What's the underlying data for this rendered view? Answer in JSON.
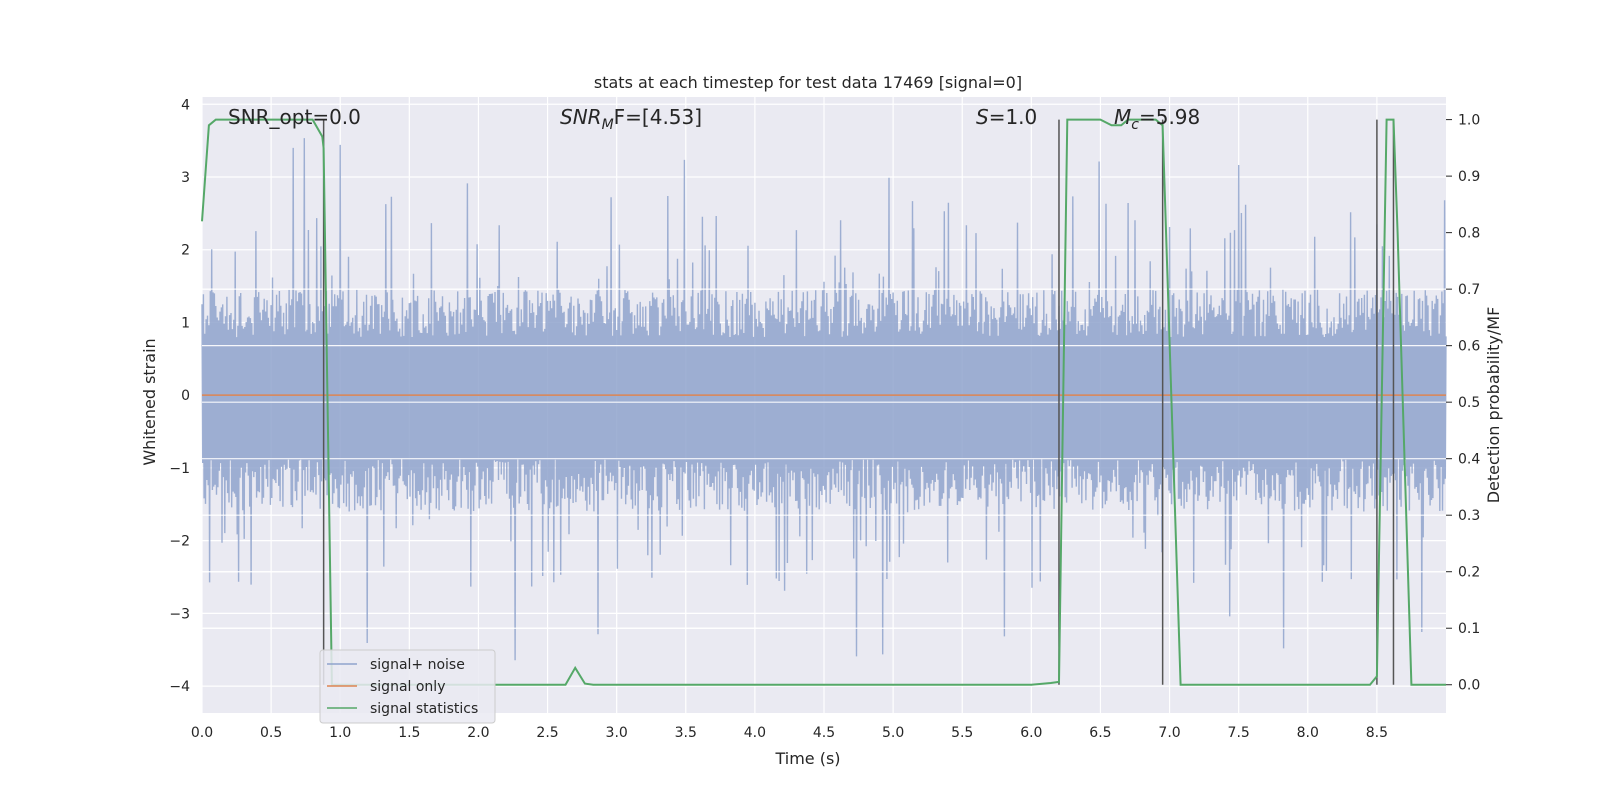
{
  "colors": {
    "background": "#eaeaf2",
    "grid": "#ffffff",
    "noise": "#8fa3cc",
    "signal": "#dd8452",
    "stats": "#55a868",
    "vline": "#555555"
  },
  "chart_data": {
    "type": "line",
    "title": "stats at each timestep for test data 17469 [signal=0]",
    "xlabel": "Time (s)",
    "ylabel": "Whitened strain",
    "y2label": "Detection probability/MF",
    "xlim": [
      0,
      9.0
    ],
    "ylim": [
      -4.37,
      4.1
    ],
    "y2lim": [
      -0.05,
      1.04
    ],
    "grid": true,
    "xticks": [
      0.0,
      0.5,
      1.0,
      1.5,
      2.0,
      2.5,
      3.0,
      3.5,
      4.0,
      4.5,
      5.0,
      5.5,
      6.0,
      6.5,
      7.0,
      7.5,
      8.0,
      8.5
    ],
    "xtick_labels": [
      "0.0",
      "0.5",
      "1.0",
      "1.5",
      "2.0",
      "2.5",
      "3.0",
      "3.5",
      "4.0",
      "4.5",
      "5.0",
      "5.5",
      "6.0",
      "6.5",
      "7.0",
      "7.5",
      "8.0",
      "8.5"
    ],
    "yticks": [
      4,
      3,
      2,
      1,
      0,
      -1,
      -2,
      -3,
      -4
    ],
    "ytick_labels": [
      "4",
      "3",
      "2",
      "1",
      "0",
      "−1",
      "−2",
      "−3",
      "−4"
    ],
    "y2ticks": [
      1.0,
      0.9,
      0.8,
      0.7,
      0.6,
      0.5,
      0.4,
      0.3,
      0.2,
      0.1,
      0.0
    ],
    "y2tick_labels": [
      "1.0",
      "0.9",
      "0.8",
      "0.7",
      "0.6",
      "0.5",
      "0.4",
      "0.3",
      "0.2",
      "0.1",
      "0.0"
    ],
    "annotations": {
      "snr_opt": "SNR_opt=0.0",
      "snr_mf_main": "SNR",
      "snr_mf_sub": "M",
      "snr_mf_rest": "F=[4.53]",
      "s_main": "S",
      "s_rest": "=1.0",
      "mc_main": "M",
      "mc_sub": "c",
      "mc_rest": "=5.98"
    },
    "legend": {
      "placement": "lower-left",
      "entries": [
        "signal+ noise",
        "signal only",
        "signal statistics"
      ]
    },
    "series": [
      {
        "name": "signal+ noise",
        "kind": "noise",
        "axis": "left",
        "x_range": [
          0,
          9.0
        ],
        "band_core": [
          -1.6,
          1.45
        ],
        "typical_peak": 2.4,
        "max_peak": 3.65
      },
      {
        "name": "signal only",
        "axis": "left",
        "x": [
          0,
          9.0
        ],
        "y": [
          0,
          0
        ]
      },
      {
        "name": "signal statistics",
        "axis": "right",
        "x": [
          0.0,
          0.05,
          0.1,
          0.15,
          0.2,
          0.3,
          0.4,
          0.5,
          0.6,
          0.7,
          0.8,
          0.87,
          0.88,
          0.94,
          1.0,
          1.5,
          2.0,
          2.5,
          2.63,
          2.7,
          2.77,
          2.83,
          3.0,
          4.0,
          5.0,
          6.0,
          6.14,
          6.2,
          6.26,
          6.3,
          6.4,
          6.5,
          6.58,
          6.65,
          6.7,
          6.8,
          6.9,
          6.95,
          7.08,
          7.5,
          8.0,
          8.45,
          8.5,
          8.57,
          8.62,
          8.65,
          8.75,
          8.85,
          9.0
        ],
        "y": [
          0.82,
          0.99,
          1.0,
          1.0,
          1.0,
          1.0,
          1.0,
          1.0,
          1.0,
          1.0,
          1.0,
          0.97,
          0.95,
          0.0,
          0.0,
          0.0,
          0.0,
          0.0,
          0.0,
          0.03,
          0.002,
          0.0,
          0.0,
          0.0,
          0.0,
          0.0,
          0.003,
          0.005,
          1.0,
          1.0,
          1.0,
          1.0,
          0.99,
          0.99,
          1.0,
          1.0,
          1.0,
          0.99,
          0.0,
          0.0,
          0.0,
          0.0,
          0.015,
          1.0,
          1.0,
          0.8,
          0.0,
          0.0,
          0.0
        ]
      }
    ],
    "vertical_markers": [
      {
        "x": 0.88,
        "y_from": 0.0,
        "y_to": 1.0
      },
      {
        "x": 6.2,
        "y_from": 0.0,
        "y_to": 1.0
      },
      {
        "x": 6.95,
        "y_from": 0.0,
        "y_to": 1.0
      },
      {
        "x": 8.5,
        "y_from": 0.0,
        "y_to": 1.0
      },
      {
        "x": 8.62,
        "y_from": 0.0,
        "y_to": 1.0
      }
    ],
    "secondary_grid_y2": [
      0.7,
      0.6,
      0.5,
      0.4,
      0.3,
      0.2,
      0.1
    ]
  }
}
